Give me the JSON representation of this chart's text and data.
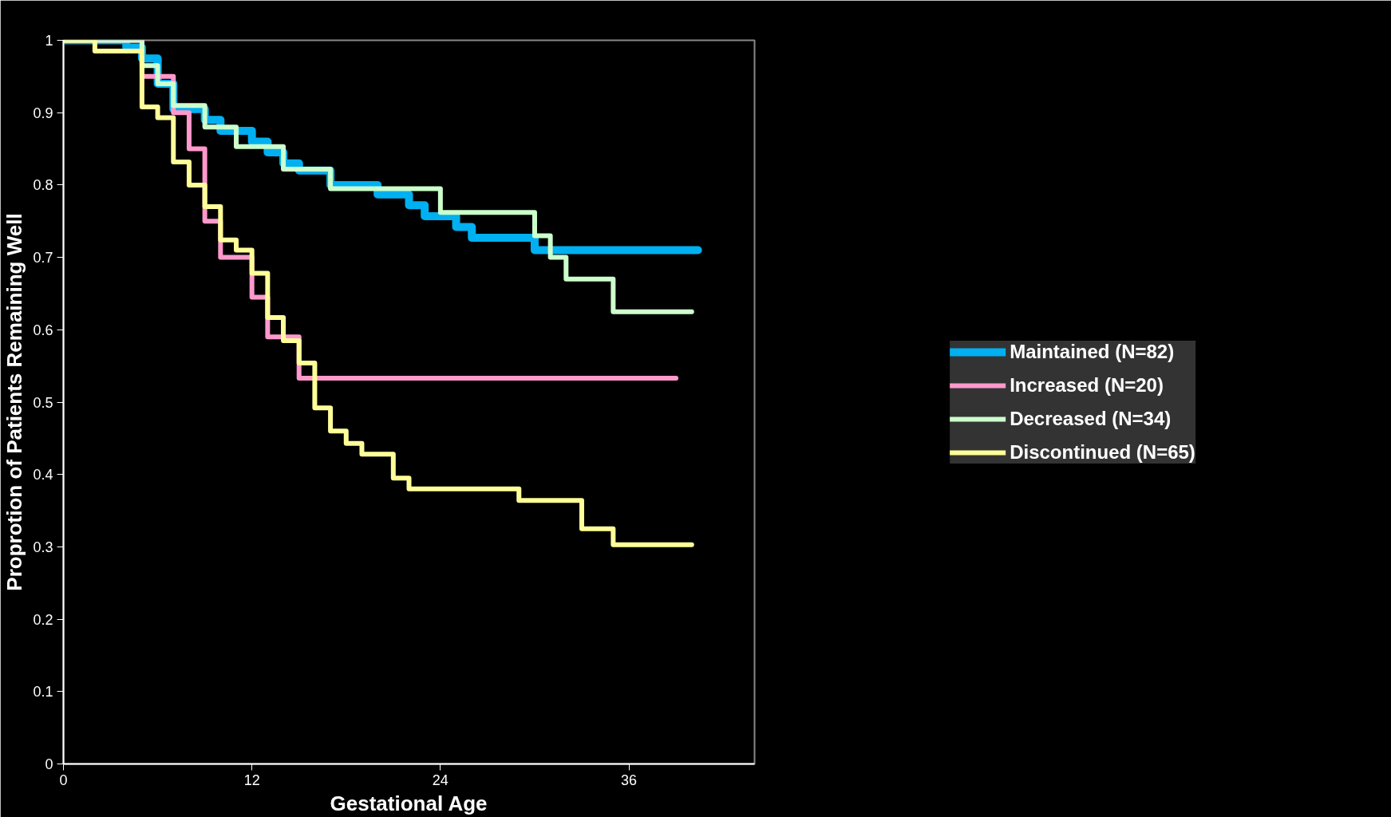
{
  "chart_data": {
    "type": "step",
    "xlabel": "Gestational Age",
    "ylabel": "Proprotion of Patients Remaining Well",
    "xlim": [
      0,
      44
    ],
    "xticks": [
      0,
      12,
      24,
      36
    ],
    "ylim": [
      0,
      1
    ],
    "yticks": [
      0,
      0.1,
      0.2,
      0.3,
      0.4,
      0.5,
      0.6,
      0.7,
      0.8,
      0.9,
      1
    ],
    "grid": false,
    "legend": "right",
    "line_style": "solid",
    "marker": "none",
    "series": [
      {
        "name": "Maintained (N=82)",
        "color": "#00b0f0",
        "x": [
          0,
          4,
          5,
          6,
          7,
          9,
          10,
          12,
          13,
          14,
          15,
          17,
          20,
          22,
          23,
          25,
          26,
          30,
          40.4
        ],
        "values": [
          1,
          0.99,
          0.975,
          0.94,
          0.905,
          0.89,
          0.875,
          0.86,
          0.845,
          0.83,
          0.82,
          0.8,
          0.787,
          0.772,
          0.757,
          0.742,
          0.727,
          0.71,
          0.71
        ]
      },
      {
        "name": "Increased (N=20)",
        "color": "#ff99cc",
        "x": [
          0,
          5,
          7,
          8,
          9,
          10,
          12,
          13,
          15,
          39
        ],
        "values": [
          1,
          0.95,
          0.9,
          0.85,
          0.75,
          0.7,
          0.645,
          0.59,
          0.533,
          0.533
        ]
      },
      {
        "name": "Decreased (N=34)",
        "color": "#ccffcc",
        "x": [
          0,
          5,
          6,
          7,
          9,
          11,
          14,
          17,
          24,
          30,
          31,
          32,
          35,
          40
        ],
        "values": [
          1,
          0.965,
          0.94,
          0.91,
          0.88,
          0.853,
          0.822,
          0.795,
          0.762,
          0.73,
          0.7,
          0.67,
          0.625,
          0.625
        ]
      },
      {
        "name": "Discontinued (N=65)",
        "color": "#ffff99",
        "x": [
          0,
          2,
          5,
          6,
          7,
          8,
          9,
          10,
          11,
          12,
          13,
          14,
          15,
          16,
          17,
          18,
          19,
          21,
          22,
          29,
          33,
          35,
          40
        ],
        "values": [
          1,
          0.985,
          0.908,
          0.893,
          0.832,
          0.8,
          0.77,
          0.724,
          0.71,
          0.678,
          0.617,
          0.585,
          0.554,
          0.492,
          0.46,
          0.443,
          0.428,
          0.395,
          0.38,
          0.364,
          0.325,
          0.303,
          0.303
        ]
      }
    ]
  }
}
